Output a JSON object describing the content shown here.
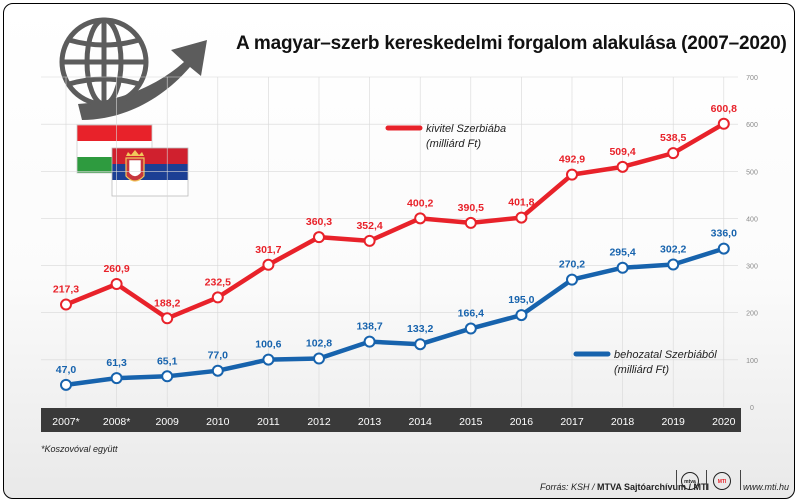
{
  "title": "A magyar–szerb kereskedelmi forgalom alakulása (2007–2020)",
  "footnote": "*Koszovóval együtt",
  "footer": {
    "source_prefix": "Forrás: KSH / ",
    "source_org": "MTVA Sajtóarchívum / MTI",
    "url": "www.mti.hu",
    "logo1": "mtva",
    "logo2": "MTI"
  },
  "colors": {
    "export": "#e8222a",
    "import": "#1763ad",
    "axis_band": "#3a3a3a"
  },
  "icons": [
    "globe-icon",
    "rising-arrow-icon",
    "hungary-flag-icon",
    "serbia-flag-icon"
  ],
  "chart_data": {
    "type": "line",
    "categories": [
      "2007*",
      "2008*",
      "2009",
      "2010",
      "2011",
      "2012",
      "2013",
      "2014",
      "2015",
      "2016",
      "2017",
      "2018",
      "2019",
      "2020"
    ],
    "ylim": [
      0,
      700
    ],
    "yticks": [
      "0",
      "100",
      "200",
      "300",
      "400",
      "500",
      "600",
      "700"
    ],
    "series": [
      {
        "key": "export",
        "name": "kivitel Szerbiába",
        "unit": "(milliárd Ft)",
        "values": [
          217.3,
          260.9,
          188.2,
          232.5,
          301.7,
          360.3,
          352.4,
          400.2,
          390.5,
          401.8,
          492.9,
          509.4,
          538.5,
          600.8
        ],
        "labels": [
          "217,3",
          "260,9",
          "188,2",
          "232,5",
          "301,7",
          "360,3",
          "352,4",
          "400,2",
          "390,5",
          "401,8",
          "492,9",
          "509,4",
          "538,5",
          "600,8"
        ]
      },
      {
        "key": "import",
        "name": "behozatal Szerbiából",
        "unit": "(milliárd Ft)",
        "values": [
          47.0,
          61.3,
          65.1,
          77.0,
          100.6,
          102.8,
          138.7,
          133.2,
          166.4,
          195.0,
          270.2,
          295.4,
          302.2,
          336.0
        ],
        "labels": [
          "47,0",
          "61,3",
          "65,1",
          "77,0",
          "100,6",
          "102,8",
          "138,7",
          "133,2",
          "166,4",
          "195,0",
          "270,2",
          "295,4",
          "302,2",
          "336,0"
        ]
      }
    ]
  }
}
